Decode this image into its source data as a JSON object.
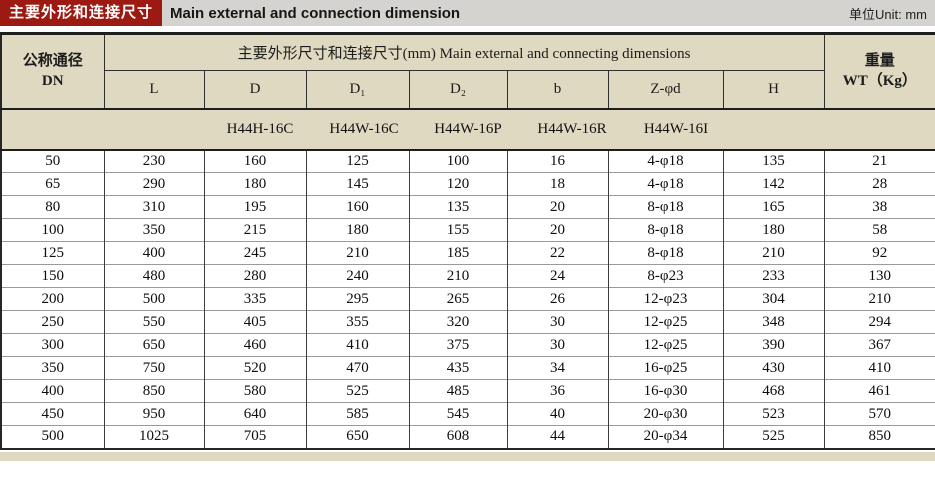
{
  "title_bar": {
    "badge_zh": "主要外形和连接尺寸",
    "title_en": "Main external and connection dimension",
    "unit": "单位Unit: mm"
  },
  "table": {
    "dn_header": {
      "zh": "公称通径",
      "code": "DN"
    },
    "span_header": "主要外形尺寸和连接尺寸(mm) Main external and connecting dimensions",
    "dim_columns": [
      "L",
      "D",
      "D₁",
      "D₂",
      "b",
      "Z-φd",
      "H"
    ],
    "weight_header": {
      "zh": "重量",
      "code": "WT（Kg）"
    },
    "models": [
      "H44H-16C",
      "H44W-16C",
      "H44W-16P",
      "H44W-16R",
      "H44W-16I"
    ],
    "rows": [
      [
        "50",
        "230",
        "160",
        "125",
        "100",
        "16",
        "4-φ18",
        "135",
        "21"
      ],
      [
        "65",
        "290",
        "180",
        "145",
        "120",
        "18",
        "4-φ18",
        "142",
        "28"
      ],
      [
        "80",
        "310",
        "195",
        "160",
        "135",
        "20",
        "8-φ18",
        "165",
        "38"
      ],
      [
        "100",
        "350",
        "215",
        "180",
        "155",
        "20",
        "8-φ18",
        "180",
        "58"
      ],
      [
        "125",
        "400",
        "245",
        "210",
        "185",
        "22",
        "8-φ18",
        "210",
        "92"
      ],
      [
        "150",
        "480",
        "280",
        "240",
        "210",
        "24",
        "8-φ23",
        "233",
        "130"
      ],
      [
        "200",
        "500",
        "335",
        "295",
        "265",
        "26",
        "12-φ23",
        "304",
        "210"
      ],
      [
        "250",
        "550",
        "405",
        "355",
        "320",
        "30",
        "12-φ25",
        "348",
        "294"
      ],
      [
        "300",
        "650",
        "460",
        "410",
        "375",
        "30",
        "12-φ25",
        "390",
        "367"
      ],
      [
        "350",
        "750",
        "520",
        "470",
        "435",
        "34",
        "16-φ25",
        "430",
        "410"
      ],
      [
        "400",
        "850",
        "580",
        "525",
        "485",
        "36",
        "16-φ30",
        "468",
        "461"
      ],
      [
        "450",
        "950",
        "640",
        "585",
        "545",
        "40",
        "20-φ30",
        "523",
        "570"
      ],
      [
        "500",
        "1025",
        "705",
        "650",
        "608",
        "44",
        "20-φ34",
        "525",
        "850"
      ]
    ]
  },
  "colors": {
    "accent_red": "#9c1a12",
    "titlebar_gray": "#d5d3d0",
    "header_beige": "#ded9c0"
  }
}
